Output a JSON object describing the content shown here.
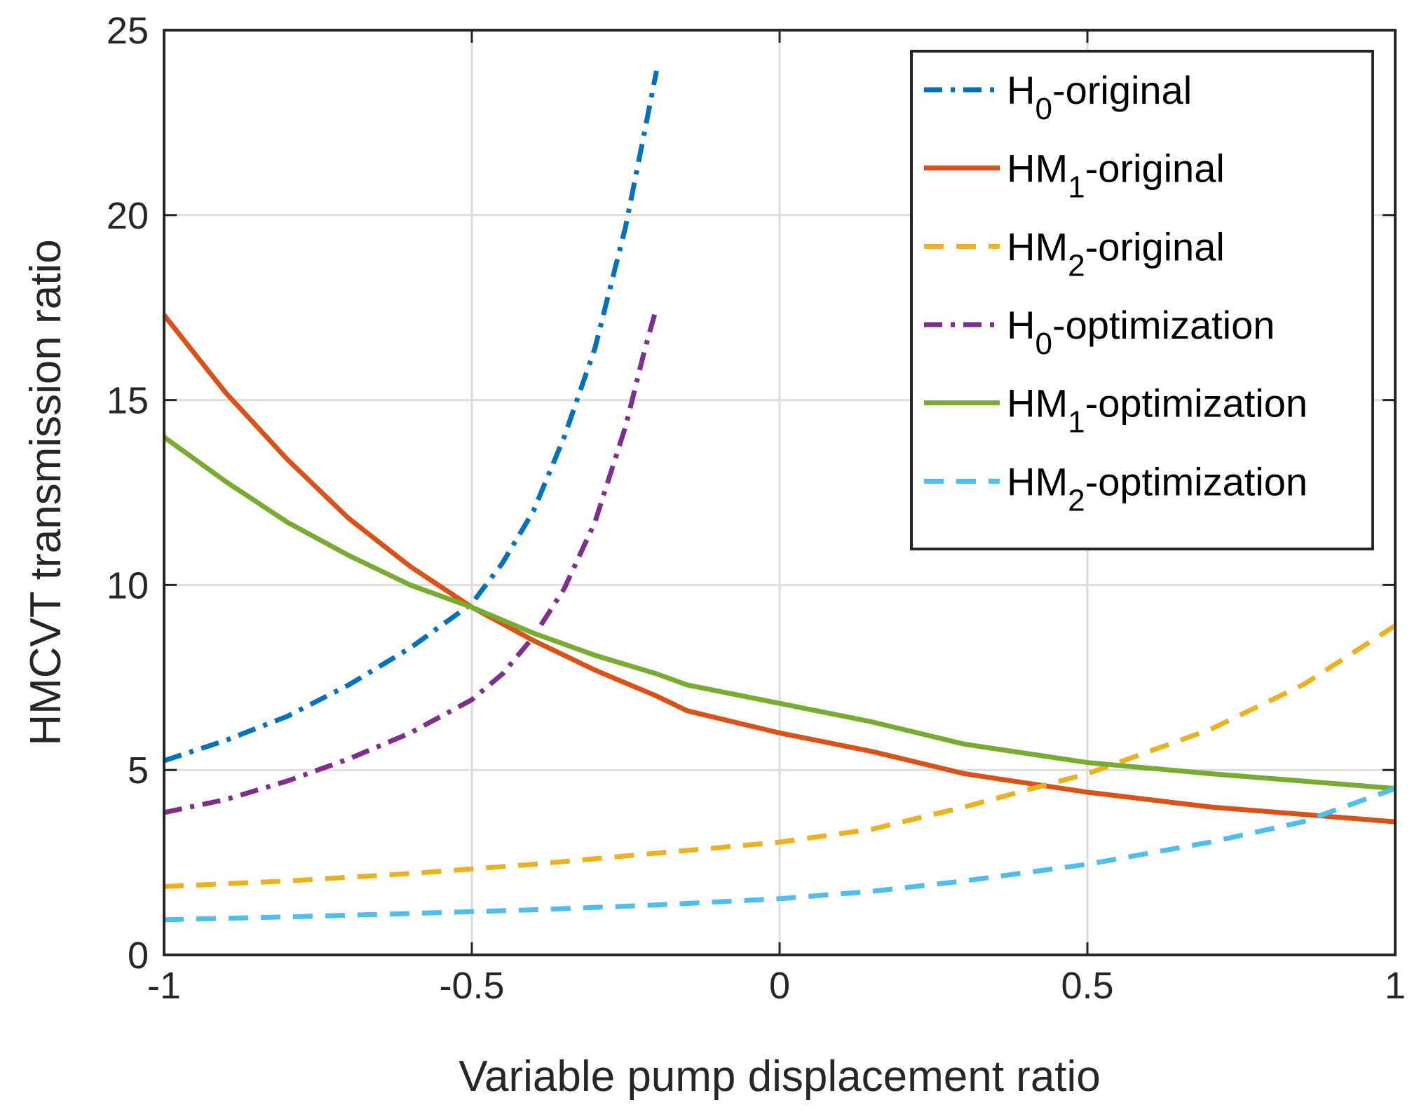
{
  "chart_data": {
    "type": "line",
    "title": "",
    "xlabel": "Variable pump displacement ratio",
    "ylabel": "HMCVT transmission ratio",
    "xlim": [
      -1,
      1
    ],
    "ylim": [
      0,
      25
    ],
    "grid": true,
    "legend_position": "top-right",
    "xticks": [
      -1,
      -0.5,
      0,
      0.5,
      1
    ],
    "xtick_labels": [
      "-1",
      "-0.5",
      "0",
      "0.5",
      "1"
    ],
    "yticks": [
      0,
      5,
      10,
      15,
      20,
      25
    ],
    "ytick_labels": [
      "0",
      "5",
      "10",
      "15",
      "20",
      "25"
    ],
    "series": [
      {
        "name": "H0-original",
        "label_main": "H",
        "label_sub": "0",
        "label_rest": "-original",
        "color": "#0072BD",
        "style": "dashdot",
        "x": [
          -1,
          -0.9,
          -0.8,
          -0.7,
          -0.6,
          -0.5,
          -0.45,
          -0.4,
          -0.35,
          -0.3,
          -0.25,
          -0.22,
          -0.2
        ],
        "y": [
          5.25,
          5.8,
          6.45,
          7.3,
          8.3,
          9.5,
          10.6,
          12.0,
          14.0,
          16.4,
          19.7,
          22.2,
          23.9
        ]
      },
      {
        "name": "HM1-original",
        "label_main": "HM",
        "label_sub": "1",
        "label_rest": "-original",
        "color": "#D95319",
        "style": "solid",
        "x": [
          -1,
          -0.9,
          -0.8,
          -0.7,
          -0.6,
          -0.5,
          -0.4,
          -0.3,
          -0.2,
          -0.15,
          0,
          0.15,
          0.3,
          0.5,
          0.7,
          0.85,
          1
        ],
        "y": [
          17.3,
          15.2,
          13.4,
          11.8,
          10.5,
          9.4,
          8.5,
          7.7,
          7.0,
          6.6,
          6.0,
          5.5,
          4.9,
          4.4,
          4.0,
          3.8,
          3.6
        ]
      },
      {
        "name": "HM2-original",
        "label_main": "HM",
        "label_sub": "2",
        "label_rest": "-original",
        "color": "#EDB120",
        "style": "dashed",
        "x": [
          -1,
          -0.8,
          -0.6,
          -0.4,
          -0.2,
          0,
          0.15,
          0.3,
          0.5,
          0.7,
          0.85,
          1
        ],
        "y": [
          1.85,
          2.0,
          2.2,
          2.45,
          2.75,
          3.05,
          3.4,
          4.0,
          4.9,
          6.1,
          7.3,
          8.9
        ]
      },
      {
        "name": "H0-optimization",
        "label_main": "H",
        "label_sub": "0",
        "label_rest": "-optimization",
        "color": "#7E2F8E",
        "style": "dashdot",
        "x": [
          -1,
          -0.9,
          -0.8,
          -0.7,
          -0.6,
          -0.5,
          -0.45,
          -0.4,
          -0.35,
          -0.3,
          -0.25,
          -0.22,
          -0.2
        ],
        "y": [
          3.85,
          4.2,
          4.7,
          5.3,
          6.0,
          6.9,
          7.6,
          8.6,
          9.9,
          11.7,
          14.3,
          16.3,
          17.5
        ]
      },
      {
        "name": "HM1-optimization",
        "label_main": "HM",
        "label_sub": "1",
        "label_rest": "-optimization",
        "color": "#77AC30",
        "style": "solid",
        "x": [
          -1,
          -0.9,
          -0.8,
          -0.7,
          -0.6,
          -0.5,
          -0.4,
          -0.3,
          -0.2,
          -0.15,
          0,
          0.15,
          0.3,
          0.5,
          0.7,
          0.85,
          1
        ],
        "y": [
          14.0,
          12.8,
          11.7,
          10.8,
          10.0,
          9.4,
          8.7,
          8.1,
          7.6,
          7.3,
          6.8,
          6.3,
          5.7,
          5.2,
          4.9,
          4.7,
          4.5
        ]
      },
      {
        "name": "HM2-optimization",
        "label_main": "HM",
        "label_sub": "2",
        "label_rest": "-optimization",
        "color": "#4DBEEE",
        "style": "dashed",
        "x": [
          -1,
          -0.8,
          -0.6,
          -0.4,
          -0.2,
          0,
          0.15,
          0.3,
          0.5,
          0.7,
          0.85,
          1
        ],
        "y": [
          0.95,
          1.03,
          1.12,
          1.22,
          1.35,
          1.52,
          1.72,
          2.0,
          2.45,
          3.05,
          3.6,
          4.5
        ]
      }
    ]
  }
}
